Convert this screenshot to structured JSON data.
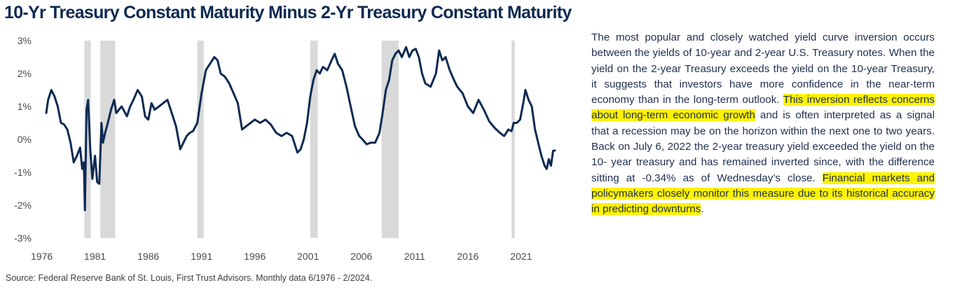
{
  "chart_data": {
    "type": "line",
    "title": "10-Yr Treasury Constant Maturity Minus 2-Yr Treasury Constant Maturity",
    "xlabel": "",
    "ylabel": "",
    "xlim": [
      1976.42,
      2024.17
    ],
    "ylim": [
      -3,
      3
    ],
    "grid": false,
    "y_ticks": [
      3,
      2,
      1,
      0,
      -1,
      -2,
      -3
    ],
    "y_tick_labels": [
      "3%",
      "2%",
      "1%",
      "0%",
      "-1%",
      "-2%",
      "-3%"
    ],
    "x_ticks": [
      1976,
      1981,
      1986,
      1991,
      1996,
      2001,
      2006,
      2011,
      2016,
      2021
    ],
    "x_tick_labels": [
      "1976",
      "1981",
      "1986",
      "1991",
      "1996",
      "2001",
      "2006",
      "2011",
      "2016",
      "2021"
    ],
    "line_color": "#0d2a52",
    "recession_color": "#d9d9d9",
    "recessions": [
      [
        1980.0,
        1980.6
      ],
      [
        1981.5,
        1982.9
      ],
      [
        1990.6,
        1991.2
      ],
      [
        2001.2,
        2001.9
      ],
      [
        2007.9,
        2009.5
      ],
      [
        2020.1,
        2020.4
      ]
    ],
    "series": [
      {
        "x": [
          1976.42,
          1976.6,
          1976.9,
          1977.2,
          1977.5,
          1977.8,
          1978.1,
          1978.4,
          1978.7,
          1979.0,
          1979.3,
          1979.6,
          1979.8,
          1979.95,
          1980.05,
          1980.2,
          1980.35,
          1980.55,
          1980.75,
          1981.0,
          1981.2,
          1981.4,
          1981.6,
          1981.75,
          1981.95,
          1982.2,
          1982.5,
          1982.8,
          1983.0,
          1983.5,
          1984.0,
          1984.3,
          1984.6,
          1985.0,
          1985.4,
          1985.7,
          1986.0,
          1986.3,
          1986.6,
          1987.0,
          1987.4,
          1987.8,
          1988.2,
          1988.6,
          1989.0,
          1989.3,
          1989.6,
          1989.9,
          1990.2,
          1990.6,
          1991.0,
          1991.4,
          1991.8,
          1992.2,
          1992.5,
          1992.8,
          1993.2,
          1993.6,
          1994.0,
          1994.4,
          1994.8,
          1995.2,
          1995.6,
          1996.0,
          1996.5,
          1997.0,
          1997.5,
          1998.0,
          1998.5,
          1999.0,
          1999.5,
          2000.0,
          2000.3,
          2000.6,
          2000.9,
          2001.2,
          2001.5,
          2001.8,
          2002.1,
          2002.4,
          2002.8,
          2003.2,
          2003.5,
          2003.8,
          2004.2,
          2004.6,
          2005.0,
          2005.4,
          2005.8,
          2006.1,
          2006.5,
          2006.9,
          2007.3,
          2007.7,
          2008.0,
          2008.3,
          2008.6,
          2008.9,
          2009.2,
          2009.5,
          2009.8,
          2010.2,
          2010.5,
          2010.8,
          2011.1,
          2011.4,
          2011.7,
          2012.0,
          2012.5,
          2013.0,
          2013.3,
          2013.6,
          2013.9,
          2014.3,
          2014.7,
          2015.0,
          2015.5,
          2016.0,
          2016.5,
          2017.0,
          2017.5,
          2018.0,
          2018.5,
          2019.0,
          2019.4,
          2019.8,
          2020.1,
          2020.3,
          2020.6,
          2020.9,
          2021.2,
          2021.4,
          2021.7,
          2022.0,
          2022.3,
          2022.6,
          2022.9,
          2023.2,
          2023.4,
          2023.6,
          2023.8,
          2024.0,
          2024.17
        ],
        "values": [
          0.8,
          1.2,
          1.5,
          1.3,
          1.0,
          0.5,
          0.45,
          0.3,
          -0.1,
          -0.7,
          -0.5,
          -0.25,
          -0.9,
          -0.7,
          -2.15,
          0.9,
          1.2,
          -0.3,
          -1.2,
          -0.5,
          -1.3,
          -1.35,
          0.5,
          -0.1,
          0.2,
          0.5,
          0.9,
          1.2,
          0.8,
          1.0,
          0.7,
          1.0,
          1.2,
          1.5,
          1.3,
          0.7,
          0.6,
          1.1,
          0.9,
          1.0,
          1.1,
          1.2,
          0.8,
          0.4,
          -0.3,
          -0.1,
          0.1,
          0.2,
          0.25,
          0.5,
          1.4,
          2.1,
          2.3,
          2.5,
          2.4,
          2.0,
          1.9,
          1.7,
          1.4,
          1.1,
          0.3,
          0.4,
          0.5,
          0.6,
          0.5,
          0.6,
          0.45,
          0.2,
          0.1,
          0.2,
          0.1,
          -0.4,
          -0.3,
          0.0,
          0.5,
          1.3,
          1.8,
          2.1,
          2.0,
          2.2,
          2.1,
          2.4,
          2.6,
          2.3,
          2.1,
          1.6,
          1.0,
          0.4,
          0.1,
          0.0,
          -0.15,
          -0.1,
          -0.1,
          0.2,
          0.8,
          1.5,
          1.8,
          2.4,
          2.6,
          2.7,
          2.5,
          2.8,
          2.5,
          2.7,
          2.75,
          2.5,
          2.0,
          1.7,
          1.6,
          2.0,
          2.7,
          2.4,
          2.5,
          2.1,
          1.8,
          1.6,
          1.4,
          1.0,
          0.8,
          1.2,
          0.9,
          0.55,
          0.35,
          0.2,
          0.1,
          0.3,
          0.25,
          0.5,
          0.5,
          0.6,
          1.1,
          1.5,
          1.2,
          1.0,
          0.3,
          -0.1,
          -0.5,
          -0.8,
          -0.9,
          -0.6,
          -0.8,
          -0.35,
          -0.34
        ]
      }
    ]
  },
  "description": {
    "part1": "The most popular and closely watched yield curve inversion occurs between the yields of 10-year and 2-year U.S. Treasury notes. When the yield on the 2-year Treasury exceeds the yield on the 10-year Treasury, it suggests that investors have more confidence in the near-term economy than in the long-term outlook. ",
    "highlight1": "This inversion reflects concerns about long-term economic growth",
    "part2": " and is often interpreted as a signal that a recession may be on the horizon within the next one to two years. Back on July 6, 2022 the 2-year treasury yield exceeded the yield on the 10- year treasury and has remained inverted since, with the difference sitting at -0.34% as of Wednesday’s close. ",
    "highlight2": "Financial markets and policymakers closely monitor this measure due to its historical accuracy in predicting downturns",
    "part3": "."
  },
  "source": "Source: Federal Reserve Bank of St. Louis, First Trust Advisors. Monthly data 6/1976 - 2/2024."
}
